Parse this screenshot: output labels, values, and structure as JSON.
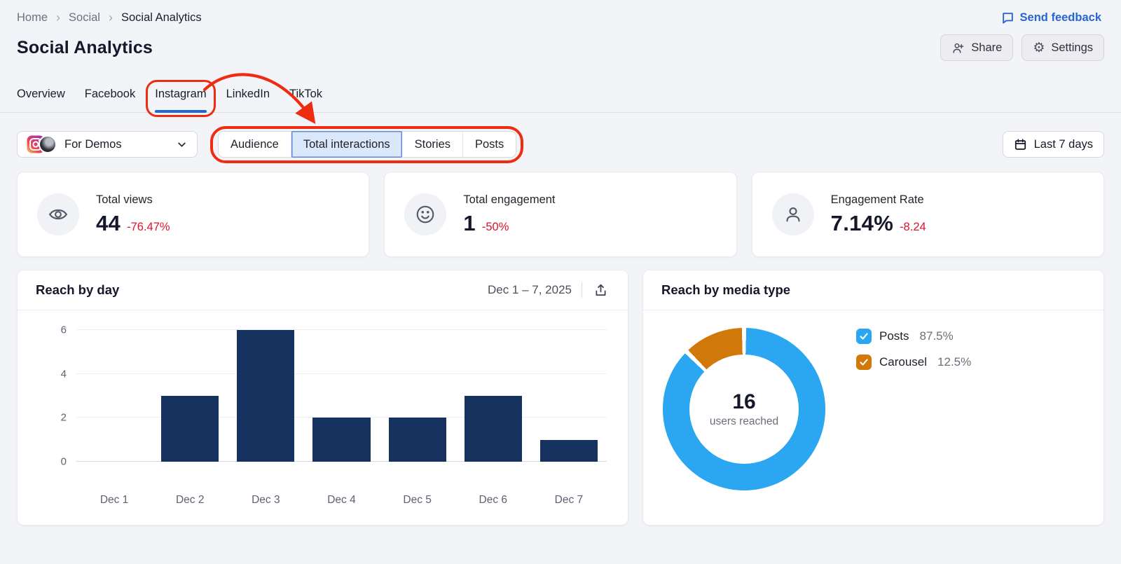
{
  "breadcrumb": {
    "items": [
      "Home",
      "Social"
    ],
    "current": "Social Analytics"
  },
  "feedback_link": "Send feedback",
  "header": {
    "title": "Social Analytics",
    "share_label": "Share",
    "settings_label": "Settings"
  },
  "tabs": {
    "items": [
      "Overview",
      "Facebook",
      "Instagram",
      "LinkedIn",
      "TikTok"
    ],
    "active": "Instagram"
  },
  "controls": {
    "profile_selector": {
      "label": "For Demos"
    },
    "filter_segments": {
      "options": [
        "Audience",
        "Total interactions",
        "Stories",
        "Posts"
      ],
      "selected": "Total interactions"
    },
    "date_range_label": "Last 7 days"
  },
  "metrics": [
    {
      "label": "Total views",
      "value": "44",
      "delta": "-76.47%",
      "icon": "eye-icon"
    },
    {
      "label": "Total engagement",
      "value": "1",
      "delta": "-50%",
      "icon": "smiley-icon"
    },
    {
      "label": "Engagement Rate",
      "value": "7.14%",
      "delta": "-8.24",
      "icon": "person-icon"
    }
  ],
  "chart_data": [
    {
      "type": "bar",
      "title": "Reach by day",
      "date_range": "Dec 1 – 7, 2025",
      "categories": [
        "Dec 1",
        "Dec 2",
        "Dec 3",
        "Dec 4",
        "Dec 5",
        "Dec 6",
        "Dec 7"
      ],
      "values": [
        0,
        3,
        6,
        2,
        2,
        3,
        1
      ],
      "xlabel": "",
      "ylabel": "",
      "ylim": [
        0,
        6
      ],
      "yticks": [
        0,
        2,
        4,
        6
      ],
      "grid": true,
      "legend": false,
      "bar_color": "#16325f"
    },
    {
      "type": "donut",
      "title": "Reach by media type",
      "center_value": "16",
      "center_label": "users reached",
      "legend_position": "right",
      "series": [
        {
          "name": "Posts",
          "value": 87.5,
          "value_label": "87.5%",
          "color": "#2aa7f0"
        },
        {
          "name": "Carousel",
          "value": 12.5,
          "value_label": "12.5%",
          "color": "#d0790a"
        }
      ]
    }
  ],
  "annotations": {
    "color": "#ee2c12",
    "highlighted_tab": "Instagram",
    "highlighted_control": "Total interactions filter"
  },
  "colors": {
    "accent_blue": "#2166d1",
    "negative_red": "#e0122e",
    "bar_navy": "#16325f",
    "donut_blue": "#2aa7f0",
    "donut_orange": "#d0790a",
    "annotation_red": "#ee2c12"
  }
}
